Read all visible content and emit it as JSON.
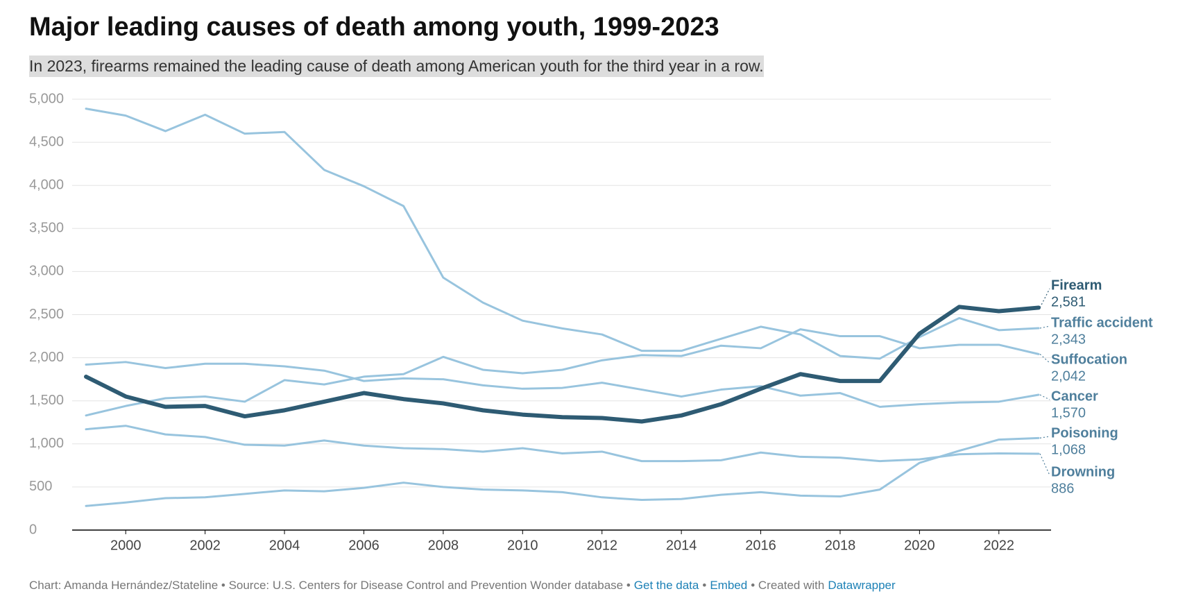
{
  "chart_data": {
    "type": "line",
    "title": "Major leading causes of death among youth, 1999-2023",
    "subtitle": "In 2023, firearms remained the leading cause of death among American youth for the third year in a row.",
    "x": [
      1999,
      2000,
      2001,
      2002,
      2003,
      2004,
      2005,
      2006,
      2007,
      2008,
      2009,
      2010,
      2011,
      2012,
      2013,
      2014,
      2015,
      2016,
      2017,
      2018,
      2019,
      2020,
      2021,
      2022,
      2023
    ],
    "xlim": [
      1999,
      2023
    ],
    "xticks": [
      2000,
      2002,
      2004,
      2006,
      2008,
      2010,
      2012,
      2014,
      2016,
      2018,
      2020,
      2022
    ],
    "ylim": [
      0,
      5000
    ],
    "yticks": [
      0,
      500,
      {
        "value": 1000,
        "label": "1,000"
      },
      {
        "value": 1500,
        "label": "1,500"
      },
      {
        "value": 2000,
        "label": "2,000"
      },
      {
        "value": 2500,
        "label": "2,500"
      },
      {
        "value": 3000,
        "label": "3,000"
      },
      {
        "value": 3500,
        "label": "3,500"
      },
      {
        "value": 4000,
        "label": "4,000"
      },
      {
        "value": 4500,
        "label": "4,500"
      },
      {
        "value": 5000,
        "label": "5,000"
      }
    ],
    "grid": true,
    "series": [
      {
        "name": "Firearm",
        "color": "#2e5b73",
        "values": [
          1780,
          1550,
          1430,
          1440,
          1320,
          1390,
          1490,
          1590,
          1520,
          1470,
          1390,
          1340,
          1310,
          1300,
          1260,
          1330,
          1460,
          1640,
          1810,
          1730,
          1730,
          2280,
          2590,
          2540,
          2581
        ],
        "value_labels": [
          null,
          null,
          null,
          null,
          null,
          null,
          null,
          null,
          null,
          null,
          null,
          null,
          null,
          null,
          null,
          null,
          null,
          null,
          null,
          null,
          null,
          null,
          null,
          null,
          "2,581"
        ]
      },
      {
        "name": "Traffic accident",
        "color": "#98c4de",
        "values": [
          4890,
          4810,
          4630,
          4820,
          4600,
          4620,
          4180,
          3990,
          3760,
          2930,
          2640,
          2430,
          2340,
          2270,
          2080,
          2080,
          2220,
          2360,
          2270,
          2020,
          1990,
          2240,
          2460,
          2320,
          2343
        ],
        "value_labels": [
          null,
          null,
          null,
          null,
          null,
          null,
          null,
          null,
          null,
          null,
          null,
          null,
          null,
          null,
          null,
          null,
          null,
          null,
          null,
          null,
          null,
          null,
          null,
          null,
          "2,343"
        ]
      },
      {
        "name": "Suffocation",
        "color": "#98c4de",
        "values": [
          1330,
          1440,
          1530,
          1550,
          1490,
          1740,
          1690,
          1780,
          1810,
          2010,
          1860,
          1820,
          1860,
          1970,
          2030,
          2020,
          2140,
          2110,
          2330,
          2250,
          2250,
          2110,
          2150,
          2150,
          2042
        ],
        "value_labels": [
          null,
          null,
          null,
          null,
          null,
          null,
          null,
          null,
          null,
          null,
          null,
          null,
          null,
          null,
          null,
          null,
          null,
          null,
          null,
          null,
          null,
          null,
          null,
          null,
          "2,042"
        ]
      },
      {
        "name": "Cancer",
        "color": "#98c4de",
        "values": [
          1920,
          1950,
          1880,
          1930,
          1930,
          1900,
          1850,
          1730,
          1760,
          1750,
          1680,
          1640,
          1650,
          1710,
          1630,
          1550,
          1630,
          1670,
          1560,
          1590,
          1430,
          1460,
          1480,
          1490,
          1570
        ],
        "value_labels": [
          null,
          null,
          null,
          null,
          null,
          null,
          null,
          null,
          null,
          null,
          null,
          null,
          null,
          null,
          null,
          null,
          null,
          null,
          null,
          null,
          null,
          null,
          null,
          null,
          "1,570"
        ]
      },
      {
        "name": "Poisoning",
        "color": "#98c4de",
        "values": [
          280,
          320,
          370,
          380,
          420,
          460,
          450,
          490,
          550,
          500,
          470,
          460,
          440,
          380,
          350,
          360,
          410,
          440,
          400,
          390,
          470,
          780,
          920,
          1050,
          1068
        ],
        "value_labels": [
          null,
          null,
          null,
          null,
          null,
          null,
          null,
          null,
          null,
          null,
          null,
          null,
          null,
          null,
          null,
          null,
          null,
          null,
          null,
          null,
          null,
          null,
          null,
          null,
          "1,068"
        ]
      },
      {
        "name": "Drowning",
        "color": "#98c4de",
        "values": [
          1170,
          1210,
          1110,
          1080,
          990,
          980,
          1040,
          980,
          950,
          940,
          910,
          950,
          890,
          910,
          800,
          800,
          810,
          900,
          850,
          840,
          800,
          820,
          880,
          890,
          886
        ]
      }
    ]
  },
  "footer": [
    {
      "text": "Chart: Amanda Hernández/Stateline • Source: U.S. Centers for Disease Control and Prevention Wonder database •",
      "link": false
    },
    {
      "text": "Get the data",
      "link": true
    },
    {
      "text": "•",
      "link": false
    },
    {
      "text": "Embed",
      "link": true
    },
    {
      "text": "• Created with",
      "link": false
    },
    {
      "text": "Datawrapper",
      "link": true
    }
  ]
}
